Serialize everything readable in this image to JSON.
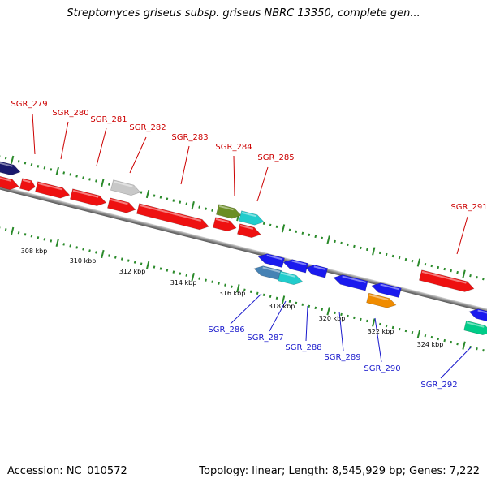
{
  "title": "Streptomyces griseus subsp. griseus NBRC 13350, complete gen...",
  "footer": {
    "accession": "Accession: NC_010572",
    "topology": "Topology: linear; Length: 8,545,929 bp; Genes: 7,222"
  },
  "colors": {
    "forward_label": "#cc0000",
    "reverse_label": "#1a1acc",
    "backbone": "#888888",
    "ticks": "#2a8a2a"
  },
  "scale_labels": [
    "308 kbp",
    "310 kbp",
    "312 kbp",
    "314 kbp",
    "316 kbp",
    "318 kbp",
    "320 kbp",
    "322 kbp",
    "324 kbp"
  ],
  "forward_genes": [
    "SGR_279",
    "SGR_280",
    "SGR_281",
    "SGR_282",
    "SGR_283",
    "SGR_284",
    "SGR_285",
    "SGR_291"
  ],
  "reverse_genes": [
    "SGR_286",
    "SGR_287",
    "SGR_288",
    "SGR_289",
    "SGR_290",
    "SGR_292"
  ],
  "gene_colors": {
    "red": "#ee1111",
    "gray": "#c8c8c8",
    "navy": "#1a1a6e",
    "olive": "#6b8e23",
    "cyan": "#22cccc",
    "blue": "#1a1aee",
    "orange": "#f08c00",
    "teal": "#00cc88",
    "steel": "#4682b4"
  }
}
